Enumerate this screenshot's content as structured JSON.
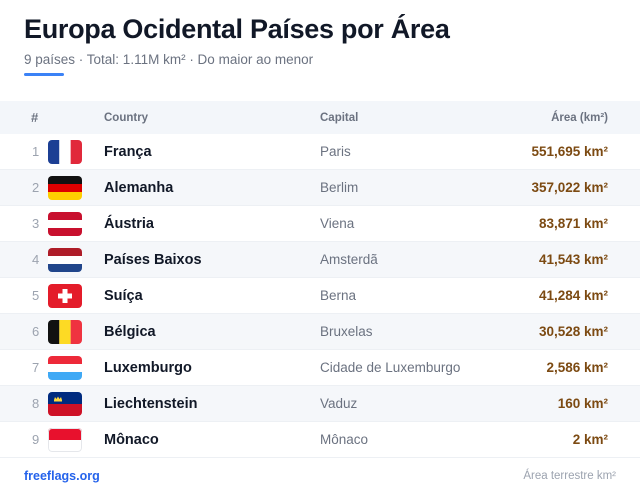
{
  "header": {
    "title": "Europa Ocidental Países por Área",
    "subtitle": "9 países · Total: 1.11M km² · Do maior ao menor",
    "accent_color": "#3b82f6"
  },
  "table": {
    "columns": {
      "num": "#",
      "country": "Country",
      "capital": "Capital",
      "area": "Área (km²)"
    },
    "rows": [
      {
        "rank": "1",
        "flag": "france-flag-icon",
        "country": "França",
        "capital": "Paris",
        "area": "551,695 km²"
      },
      {
        "rank": "2",
        "flag": "germany-flag-icon",
        "country": "Alemanha",
        "capital": "Berlim",
        "area": "357,022 km²"
      },
      {
        "rank": "3",
        "flag": "austria-flag-icon",
        "country": "Áustria",
        "capital": "Viena",
        "area": "83,871 km²"
      },
      {
        "rank": "4",
        "flag": "netherlands-flag-icon",
        "country": "Países Baixos",
        "capital": "Amsterdã",
        "area": "41,543 km²"
      },
      {
        "rank": "5",
        "flag": "switzerland-flag-icon",
        "country": "Suíça",
        "capital": "Berna",
        "area": "41,284 km²"
      },
      {
        "rank": "6",
        "flag": "belgium-flag-icon",
        "country": "Bélgica",
        "capital": "Bruxelas",
        "area": "30,528 km²"
      },
      {
        "rank": "7",
        "flag": "luxembourg-flag-icon",
        "country": "Luxemburgo",
        "capital": "Cidade de Luxemburgo",
        "area": "2,586 km²"
      },
      {
        "rank": "8",
        "flag": "liechtenstein-flag-icon",
        "country": "Liechtenstein",
        "capital": "Vaduz",
        "area": "160 km²"
      },
      {
        "rank": "9",
        "flag": "monaco-flag-icon",
        "country": "Mônaco",
        "capital": "Mônaco",
        "area": "2 km²"
      }
    ]
  },
  "footer": {
    "link": "freeflags.org",
    "note": "Área terrestre km²"
  }
}
